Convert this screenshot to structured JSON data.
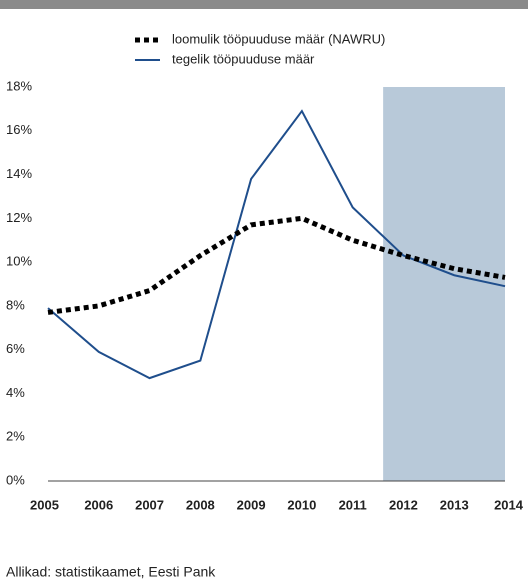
{
  "chart_data": {
    "type": "line",
    "x": [
      2005,
      2006,
      2007,
      2008,
      2009,
      2010,
      2011,
      2012,
      2013,
      2014
    ],
    "xlim": [
      2005,
      2014
    ],
    "xticks": [
      2005,
      2006,
      2007,
      2008,
      2009,
      2010,
      2011,
      2012,
      2013,
      2014
    ],
    "ylim": [
      0,
      18
    ],
    "yticks": [
      {
        "value": 0,
        "label": "0%"
      },
      {
        "value": 2,
        "label": "2%"
      },
      {
        "value": 4,
        "label": "4%"
      },
      {
        "value": 6,
        "label": "6%"
      },
      {
        "value": 8,
        "label": "8%"
      },
      {
        "value": 10,
        "label": "10%"
      },
      {
        "value": 12,
        "label": "12%"
      },
      {
        "value": 14,
        "label": "14%"
      },
      {
        "value": 16,
        "label": "16%"
      },
      {
        "value": 18,
        "label": "18%"
      }
    ],
    "shade_x": [
      2011.6,
      2014
    ],
    "shade_color": "#b8c9d9",
    "series": [
      {
        "name": "loomulik tööpuuduse määr (NAWRU)",
        "color": "#000000",
        "dashed": true,
        "values": [
          7.7,
          8.0,
          8.7,
          10.3,
          11.7,
          12.0,
          11.0,
          10.3,
          9.7,
          9.3
        ]
      },
      {
        "name": "tegelik tööpuuduse määr",
        "color": "#1f4e8c",
        "dashed": false,
        "values": [
          7.9,
          5.9,
          4.7,
          5.5,
          13.8,
          16.9,
          12.5,
          10.3,
          9.4,
          8.9
        ]
      }
    ],
    "source": "Allikad: statistikaamet, Eesti Pank"
  }
}
